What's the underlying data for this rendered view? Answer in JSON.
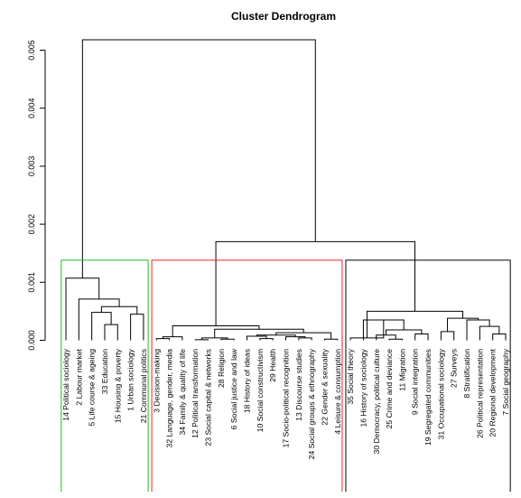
{
  "chart_data": {
    "type": "dendrogram",
    "title": "Cluster Dendrogram",
    "xlabel": "",
    "ylabel": "",
    "ylim": [
      0,
      0.0052
    ],
    "yticks": [
      0.0,
      0.001,
      0.002,
      0.003,
      0.004,
      0.005
    ],
    "ytick_labels": [
      "0.000",
      "0.001",
      "0.002",
      "0.003",
      "0.004",
      "0.005"
    ],
    "leaves": [
      {
        "id": 14,
        "label": "14 Political sociology"
      },
      {
        "id": 2,
        "label": "2 Labour market"
      },
      {
        "id": 5,
        "label": "5 Life course & ageing"
      },
      {
        "id": 33,
        "label": "33 Education"
      },
      {
        "id": 15,
        "label": "15 Housing & poverty"
      },
      {
        "id": 1,
        "label": "1 Urban sociology"
      },
      {
        "id": 21,
        "label": "21 Communal politics"
      },
      {
        "id": 3,
        "label": "3 Decision-making"
      },
      {
        "id": 32,
        "label": "32 Language, gender, media"
      },
      {
        "id": 34,
        "label": "34 Family & quality of life"
      },
      {
        "id": 12,
        "label": "12 Political transformation"
      },
      {
        "id": 23,
        "label": "23 Social capital & networks"
      },
      {
        "id": 28,
        "label": "28 Religion"
      },
      {
        "id": 6,
        "label": "6 Social justice and law"
      },
      {
        "id": 18,
        "label": "18 History of ideas"
      },
      {
        "id": 10,
        "label": "10 Social constructivism"
      },
      {
        "id": 29,
        "label": "29 Health"
      },
      {
        "id": 17,
        "label": "17 Socio-political recognition"
      },
      {
        "id": 13,
        "label": "13 Discourse studies"
      },
      {
        "id": 24,
        "label": "24 Social groups & ethnography"
      },
      {
        "id": 22,
        "label": "22 Gender & sexuality"
      },
      {
        "id": 4,
        "label": "4 Leisure & consumption"
      },
      {
        "id": 35,
        "label": "35 Social theory"
      },
      {
        "id": 16,
        "label": "16 History of sociology"
      },
      {
        "id": 30,
        "label": "30 Democracy, political culture"
      },
      {
        "id": 25,
        "label": "25 Crime and deviance"
      },
      {
        "id": 11,
        "label": "11 Migration"
      },
      {
        "id": 9,
        "label": "9 Social integration"
      },
      {
        "id": 19,
        "label": "19 Segregated communities"
      },
      {
        "id": 31,
        "label": "31 Occupational sociology"
      },
      {
        "id": 27,
        "label": "27 Surveys"
      },
      {
        "id": 8,
        "label": "8 Stratification"
      },
      {
        "id": 26,
        "label": "26 Political representation"
      },
      {
        "id": 20,
        "label": "20 Regional development"
      },
      {
        "id": 7,
        "label": "7 Social geography"
      }
    ],
    "merges": [
      {
        "children": [
          33,
          15
        ],
        "height": 0.00027
      },
      {
        "children": [
          1,
          21
        ],
        "height": 0.00045
      },
      {
        "children": [
          5,
          "m1"
        ],
        "height": 0.00048
      },
      {
        "children": [
          "m3",
          "m2"
        ],
        "height": 0.00058
      },
      {
        "children": [
          2,
          "m4"
        ],
        "height": 0.00071
      },
      {
        "children": [
          14,
          "m5"
        ],
        "height": 0.00107
      },
      {
        "children": [
          3,
          32
        ],
        "height": 3e-05
      },
      {
        "children": [
          "m7",
          34
        ],
        "height": 6e-05
      },
      {
        "children": [
          12,
          23
        ],
        "height": 1e-05
      },
      {
        "children": [
          28,
          6
        ],
        "height": 2e-05
      },
      {
        "children": [
          "m9",
          "m10"
        ],
        "height": 4e-05
      },
      {
        "children": [
          10,
          29
        ],
        "height": 3e-05
      },
      {
        "children": [
          18,
          "m12"
        ],
        "height": 7e-05
      },
      {
        "children": [
          13,
          24
        ],
        "height": 4e-05
      },
      {
        "children": [
          17,
          "m14"
        ],
        "height": 6e-05
      },
      {
        "children": [
          "m13",
          "m15"
        ],
        "height": 9e-05
      },
      {
        "children": [
          22,
          4
        ],
        "height": 2e-05
      },
      {
        "children": [
          "m16",
          "m17"
        ],
        "height": 0.00013
      },
      {
        "children": [
          "m11",
          "m18"
        ],
        "height": 0.00019
      },
      {
        "children": [
          "m8",
          "m19"
        ],
        "height": 0.00025
      },
      {
        "children": [
          25,
          11
        ],
        "height": 2e-05
      },
      {
        "children": [
          30,
          "m21"
        ],
        "height": 9e-05
      },
      {
        "children": [
          9,
          19
        ],
        "height": 0.00011
      },
      {
        "children": [
          "m22",
          "m23"
        ],
        "height": 0.00018
      },
      {
        "children": [
          16,
          "m24"
        ],
        "height": 0.00035
      },
      {
        "children": [
          35,
          "m25"
        ],
        "height": 4e-05
      },
      {
        "children": [
          20,
          7
        ],
        "height": 0.00011
      },
      {
        "children": [
          26,
          "m27"
        ],
        "height": 0.00024
      },
      {
        "children": [
          8,
          "m28"
        ],
        "height": 0.00035
      },
      {
        "children": [
          31,
          27
        ],
        "height": 0.00015
      },
      {
        "children": [
          "m30",
          "m29"
        ],
        "height": 0.00038
      },
      {
        "children": [
          "m26",
          "m31"
        ],
        "height": 0.0005
      },
      {
        "children": [
          "m20",
          "m32"
        ],
        "height": 0.0017
      },
      {
        "children": [
          "m6",
          "m33"
        ],
        "height": 0.00518
      }
    ],
    "cluster_boxes": [
      {
        "first_leaf": 14,
        "last_leaf": 21,
        "color": "#22bb22"
      },
      {
        "first_leaf": 3,
        "last_leaf": 4,
        "color": "#ee2222"
      },
      {
        "first_leaf": 35,
        "last_leaf": 7,
        "color": "#000000"
      }
    ],
    "cluster_box_height": 0.00138
  }
}
